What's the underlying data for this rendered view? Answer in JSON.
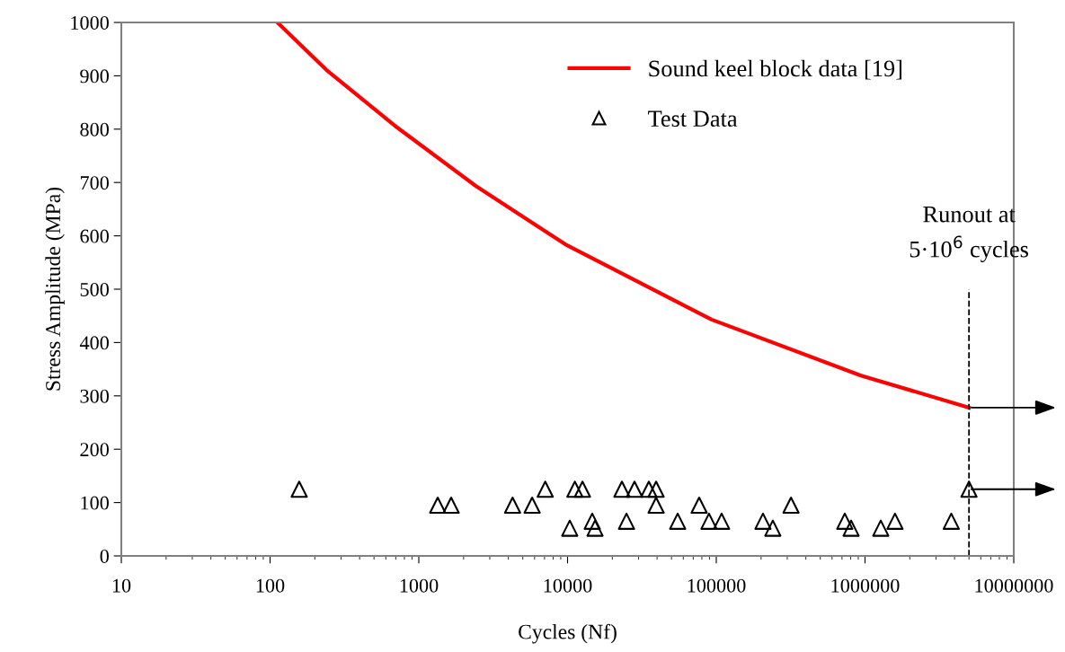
{
  "chart_data": {
    "type": "scatter",
    "xlabel": "Cycles (Nf)",
    "ylabel": "Stress Amplitude (MPa)",
    "log": "x",
    "xlim": [
      10,
      10000000
    ],
    "xticks": [
      10,
      100,
      1000,
      10000,
      100000,
      1000000,
      10000000
    ],
    "ylim": [
      0,
      1000
    ],
    "yticks": [
      0,
      100,
      200,
      300,
      400,
      500,
      600,
      700,
      800,
      900,
      1000
    ],
    "grid": false,
    "legend": "top right",
    "series": [
      {
        "name": "Sound keel block data [19]",
        "type": "line",
        "color": "#ff0000",
        "marker": "none",
        "line_style": "solid",
        "x": [
          112,
          239,
          716,
          2400,
          9660,
          93000,
          940000,
          5000000
        ],
        "values": [
          1000,
          911,
          803,
          694,
          584,
          443,
          338,
          278
        ]
      },
      {
        "name": "Test Data",
        "color": "#000000",
        "marker": "triangle",
        "x": [
          157,
          1340,
          1650,
          4270,
          5780,
          7080,
          10350,
          11200,
          12600,
          14650,
          15300,
          23200,
          24900,
          28200,
          35200,
          39400,
          39400,
          55000,
          76700,
          89300,
          108600,
          206000,
          240000,
          318000,
          731000,
          806000,
          1276000,
          1590000,
          3800000,
          5000000
        ],
        "values": [
          125,
          95,
          95,
          95,
          95,
          125,
          52,
          125,
          125,
          65,
          52,
          125,
          65,
          125,
          125,
          125,
          95,
          65,
          95,
          65,
          65,
          65,
          52,
          95,
          65,
          52,
          52,
          65,
          65,
          125
        ]
      }
    ],
    "ref_lines": [
      {
        "axis": "x",
        "value": 5000000,
        "label": "Runout at\n5·10$^{6}$ cycles",
        "color": "#000000",
        "line_style": "dashed"
      }
    ]
  }
}
